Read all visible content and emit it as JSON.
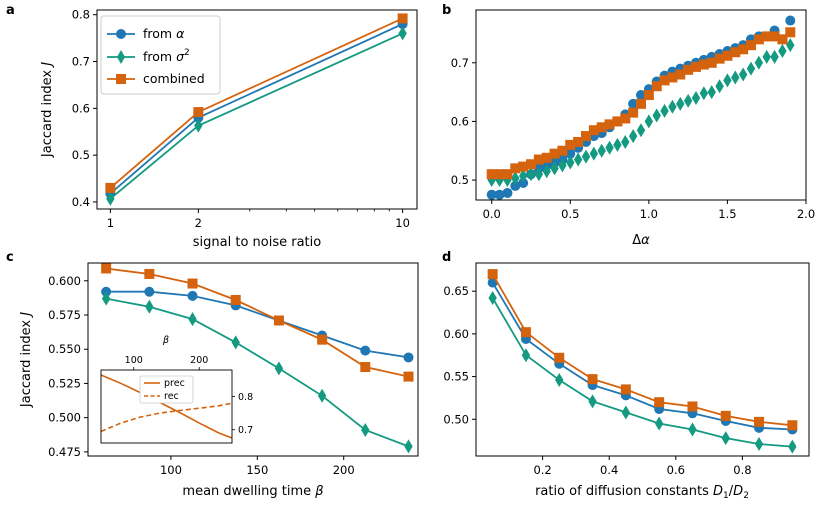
{
  "colors": {
    "blue": "#1f77b4",
    "green": "#139a80",
    "orange": "#d5620c"
  },
  "chart_data": [
    {
      "panel": "a",
      "type": "line",
      "xscale": "log",
      "xlabel": "signal to noise ratio",
      "ylabel": "Jaccard index J",
      "xlim": [
        0.9,
        11.2
      ],
      "ylim": [
        0.385,
        0.81
      ],
      "xticks": [
        1,
        2,
        10
      ],
      "yticks": [
        0.4,
        0.5,
        0.6,
        0.7,
        0.8
      ],
      "legend": {
        "position": "top-left",
        "entries": [
          "from α",
          "from σ²",
          "combined"
        ]
      },
      "series": [
        {
          "name": "from α",
          "marker": "circle",
          "color": "blue",
          "x": [
            1,
            2,
            10
          ],
          "y": [
            0.418,
            0.58,
            0.78
          ]
        },
        {
          "name": "from σ²",
          "marker": "diamond",
          "color": "green",
          "x": [
            1,
            2,
            10
          ],
          "y": [
            0.407,
            0.563,
            0.76
          ]
        },
        {
          "name": "combined",
          "marker": "square",
          "color": "orange",
          "x": [
            1,
            2,
            10
          ],
          "y": [
            0.43,
            0.592,
            0.792
          ]
        }
      ]
    },
    {
      "panel": "b",
      "type": "scatter",
      "xlabel": "Δα",
      "ylabel": "",
      "xlim": [
        -0.1,
        2.0
      ],
      "ylim": [
        0.466,
        0.79
      ],
      "xticks": [
        0.0,
        0.5,
        1.0,
        1.5,
        2.0
      ],
      "yticks": [
        0.5,
        0.6,
        0.7
      ],
      "series": [
        {
          "name": "from α",
          "marker": "circle",
          "color": "blue",
          "x": [
            0,
            0.05,
            0.1,
            0.15,
            0.2,
            0.25,
            0.3,
            0.35,
            0.4,
            0.45,
            0.5,
            0.55,
            0.6,
            0.65,
            0.7,
            0.75,
            0.8,
            0.85,
            0.9,
            0.95,
            1.0,
            1.05,
            1.1,
            1.15,
            1.2,
            1.25,
            1.3,
            1.35,
            1.4,
            1.45,
            1.5,
            1.55,
            1.6,
            1.65,
            1.7,
            1.75,
            1.8,
            1.85,
            1.9
          ],
          "y": [
            0.475,
            0.475,
            0.478,
            0.49,
            0.495,
            0.51,
            0.52,
            0.525,
            0.53,
            0.535,
            0.545,
            0.555,
            0.565,
            0.575,
            0.58,
            0.59,
            0.6,
            0.612,
            0.63,
            0.645,
            0.655,
            0.668,
            0.678,
            0.685,
            0.69,
            0.695,
            0.7,
            0.705,
            0.71,
            0.715,
            0.72,
            0.725,
            0.73,
            0.74,
            0.745,
            0.745,
            0.755,
            0.74,
            0.772
          ]
        },
        {
          "name": "from σ²",
          "marker": "diamond",
          "color": "green",
          "x": [
            0,
            0.05,
            0.1,
            0.15,
            0.2,
            0.25,
            0.3,
            0.35,
            0.4,
            0.45,
            0.5,
            0.55,
            0.6,
            0.65,
            0.7,
            0.75,
            0.8,
            0.85,
            0.9,
            0.95,
            1.0,
            1.05,
            1.1,
            1.15,
            1.2,
            1.25,
            1.3,
            1.35,
            1.4,
            1.45,
            1.5,
            1.55,
            1.6,
            1.65,
            1.7,
            1.75,
            1.8,
            1.85,
            1.9
          ],
          "y": [
            0.5,
            0.5,
            0.5,
            0.503,
            0.507,
            0.51,
            0.51,
            0.515,
            0.52,
            0.525,
            0.53,
            0.535,
            0.54,
            0.545,
            0.55,
            0.555,
            0.56,
            0.565,
            0.575,
            0.585,
            0.6,
            0.61,
            0.618,
            0.625,
            0.63,
            0.635,
            0.64,
            0.648,
            0.65,
            0.66,
            0.67,
            0.675,
            0.68,
            0.69,
            0.7,
            0.71,
            0.71,
            0.72,
            0.73
          ]
        },
        {
          "name": "combined",
          "marker": "square",
          "color": "orange",
          "x": [
            0,
            0.05,
            0.1,
            0.15,
            0.2,
            0.25,
            0.3,
            0.35,
            0.4,
            0.45,
            0.5,
            0.55,
            0.6,
            0.65,
            0.7,
            0.75,
            0.8,
            0.85,
            0.9,
            0.95,
            1.0,
            1.05,
            1.1,
            1.15,
            1.2,
            1.25,
            1.3,
            1.35,
            1.4,
            1.45,
            1.5,
            1.55,
            1.6,
            1.65,
            1.7,
            1.75,
            1.8,
            1.85,
            1.9
          ],
          "y": [
            0.51,
            0.51,
            0.51,
            0.52,
            0.523,
            0.527,
            0.535,
            0.538,
            0.545,
            0.55,
            0.56,
            0.565,
            0.575,
            0.585,
            0.59,
            0.595,
            0.6,
            0.605,
            0.615,
            0.63,
            0.645,
            0.66,
            0.67,
            0.675,
            0.68,
            0.688,
            0.693,
            0.697,
            0.7,
            0.707,
            0.712,
            0.718,
            0.723,
            0.73,
            0.74,
            0.745,
            0.745,
            0.74,
            0.752
          ]
        }
      ]
    },
    {
      "panel": "c",
      "type": "line",
      "xlabel": "mean dwelling time β",
      "ylabel": "Jaccard index J",
      "xlim": [
        52,
        243
      ],
      "ylim": [
        0.472,
        0.613
      ],
      "xticks": [
        100,
        150,
        200
      ],
      "yticks": [
        0.475,
        0.5,
        0.525,
        0.55,
        0.575,
        0.6
      ],
      "series": [
        {
          "name": "from α",
          "marker": "circle",
          "color": "blue",
          "x": [
            62.5,
            87.5,
            112.5,
            137.5,
            162.5,
            187.5,
            212.5,
            237.5
          ],
          "y": [
            0.592,
            0.592,
            0.589,
            0.582,
            0.571,
            0.56,
            0.549,
            0.544
          ]
        },
        {
          "name": "from σ²",
          "marker": "diamond",
          "color": "green",
          "x": [
            62.5,
            87.5,
            112.5,
            137.5,
            162.5,
            187.5,
            212.5,
            237.5
          ],
          "y": [
            0.587,
            0.581,
            0.572,
            0.555,
            0.536,
            0.516,
            0.491,
            0.479
          ]
        },
        {
          "name": "combined",
          "marker": "square",
          "color": "orange",
          "x": [
            62.5,
            87.5,
            112.5,
            137.5,
            162.5,
            187.5,
            212.5,
            237.5
          ],
          "y": [
            0.609,
            0.605,
            0.598,
            0.586,
            0.571,
            0.557,
            0.537,
            0.53
          ]
        }
      ],
      "inset": {
        "xlabel": "β",
        "xticks": [
          100,
          200
        ],
        "xlim": [
          50,
          250
        ],
        "ylim": [
          0.66,
          0.88
        ],
        "yticks": [
          0.7,
          0.8
        ],
        "legend": {
          "position": "top-left",
          "entries": [
            "prec",
            "rec"
          ]
        },
        "series": [
          {
            "name": "prec",
            "style": "solid",
            "color": "orange",
            "x": [
              50,
              80,
              110,
              140,
              170,
              200,
              230,
              250
            ],
            "y": [
              0.865,
              0.84,
              0.812,
              0.782,
              0.752,
              0.72,
              0.69,
              0.675
            ]
          },
          {
            "name": "rec",
            "style": "dashed",
            "color": "orange",
            "x": [
              50,
              80,
              110,
              140,
              170,
              200,
              230,
              250
            ],
            "y": [
              0.695,
              0.72,
              0.738,
              0.75,
              0.758,
              0.765,
              0.772,
              0.78
            ]
          }
        ]
      }
    },
    {
      "panel": "d",
      "type": "line",
      "xlabel": "ratio of diffusion constants D₁/D₂",
      "ylabel": "",
      "xlim": [
        0.0,
        1.0
      ],
      "ylim": [
        0.457,
        0.683
      ],
      "xticks": [
        0.2,
        0.4,
        0.6,
        0.8
      ],
      "yticks": [
        0.5,
        0.55,
        0.6,
        0.65
      ],
      "series": [
        {
          "name": "from α",
          "marker": "circle",
          "color": "blue",
          "x": [
            0.05,
            0.15,
            0.25,
            0.35,
            0.45,
            0.55,
            0.65,
            0.75,
            0.85,
            0.95
          ],
          "y": [
            0.66,
            0.594,
            0.565,
            0.54,
            0.528,
            0.512,
            0.507,
            0.498,
            0.49,
            0.488
          ]
        },
        {
          "name": "from σ²",
          "marker": "diamond",
          "color": "green",
          "x": [
            0.05,
            0.15,
            0.25,
            0.35,
            0.45,
            0.55,
            0.65,
            0.75,
            0.85,
            0.95
          ],
          "y": [
            0.642,
            0.575,
            0.546,
            0.521,
            0.508,
            0.495,
            0.488,
            0.478,
            0.471,
            0.468
          ]
        },
        {
          "name": "combined",
          "marker": "square",
          "color": "orange",
          "x": [
            0.05,
            0.15,
            0.25,
            0.35,
            0.45,
            0.55,
            0.65,
            0.75,
            0.85,
            0.95
          ],
          "y": [
            0.67,
            0.602,
            0.572,
            0.547,
            0.535,
            0.52,
            0.515,
            0.504,
            0.497,
            0.493
          ]
        }
      ]
    }
  ],
  "labels": {
    "panel_a": "a",
    "panel_b": "b",
    "panel_c": "c",
    "panel_d": "d",
    "a_xlabel": "signal to noise ratio",
    "a_ylabel": "Jaccard index",
    "a_ylabel_sym": "J",
    "b_xlabel_delta": "Δ",
    "b_xlabel_alpha": "α",
    "c_xlabel": "mean dwelling time",
    "c_xlabel_sym": "β",
    "c_ylabel": "Jaccard index",
    "c_ylabel_sym": "J",
    "d_xlabel": "ratio of diffusion constants",
    "d_sym_D": "D",
    "d_sub_1": "1",
    "d_slash": "/",
    "d_sub_2": "2",
    "inset_xlabel": "β",
    "legend_from": "from",
    "legend_alpha": "α",
    "legend_sigma": "σ",
    "legend_sq": "2",
    "legend_combined": "combined",
    "inset_prec": "prec",
    "inset_rec": "rec"
  }
}
